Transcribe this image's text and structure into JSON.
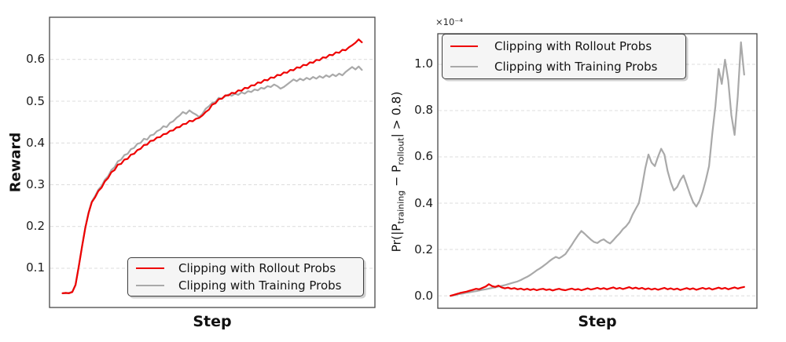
{
  "figure": {
    "background": "#ffffff",
    "grid_color": "#dcdcdc",
    "spine_color": "#474747"
  },
  "chart_data": [
    {
      "type": "line",
      "title": "",
      "xlabel": "Step",
      "ylabel": "Reward",
      "xlim": [
        0,
        1
      ],
      "ylim": [
        0.006,
        0.701
      ],
      "yticks": [
        0.1,
        0.2,
        0.3,
        0.4,
        0.5,
        0.6
      ],
      "ytick_labels": [
        "0.1",
        "0.2",
        "0.3",
        "0.4",
        "0.5",
        "0.6"
      ],
      "xticks_shown": false,
      "grid": true,
      "legend_position": "lower right",
      "x_start": 0.04,
      "x_step": 0.01,
      "series": [
        {
          "name": "Clipping with Rollout Probs",
          "color": "#ee0000",
          "values": [
            0.04,
            0.041,
            0.04,
            0.043,
            0.06,
            0.105,
            0.152,
            0.196,
            0.232,
            0.258,
            0.27,
            0.285,
            0.293,
            0.308,
            0.316,
            0.33,
            0.335,
            0.348,
            0.35,
            0.36,
            0.362,
            0.372,
            0.374,
            0.383,
            0.386,
            0.395,
            0.396,
            0.405,
            0.406,
            0.413,
            0.414,
            0.421,
            0.422,
            0.429,
            0.43,
            0.437,
            0.438,
            0.445,
            0.446,
            0.453,
            0.452,
            0.458,
            0.46,
            0.466,
            0.474,
            0.48,
            0.492,
            0.495,
            0.505,
            0.506,
            0.514,
            0.514,
            0.52,
            0.519,
            0.526,
            0.525,
            0.532,
            0.531,
            0.538,
            0.538,
            0.545,
            0.544,
            0.551,
            0.55,
            0.557,
            0.556,
            0.563,
            0.562,
            0.569,
            0.568,
            0.575,
            0.574,
            0.581,
            0.58,
            0.587,
            0.586,
            0.593,
            0.592,
            0.599,
            0.598,
            0.605,
            0.604,
            0.611,
            0.61,
            0.617,
            0.616,
            0.623,
            0.622,
            0.629,
            0.634,
            0.64,
            0.648,
            0.641
          ]
        },
        {
          "name": "Clipping with Training Probs",
          "color": "#a9a9a9",
          "values": [
            0.04,
            0.04,
            0.041,
            0.044,
            0.061,
            0.106,
            0.153,
            0.198,
            0.234,
            0.26,
            0.273,
            0.288,
            0.297,
            0.312,
            0.32,
            0.335,
            0.342,
            0.356,
            0.36,
            0.371,
            0.374,
            0.385,
            0.388,
            0.398,
            0.4,
            0.41,
            0.408,
            0.418,
            0.42,
            0.428,
            0.432,
            0.44,
            0.438,
            0.448,
            0.452,
            0.46,
            0.466,
            0.474,
            0.47,
            0.478,
            0.472,
            0.468,
            0.462,
            0.47,
            0.482,
            0.488,
            0.496,
            0.498,
            0.508,
            0.506,
            0.512,
            0.516,
            0.513,
            0.518,
            0.515,
            0.521,
            0.518,
            0.524,
            0.522,
            0.528,
            0.526,
            0.532,
            0.53,
            0.536,
            0.534,
            0.54,
            0.536,
            0.53,
            0.534,
            0.54,
            0.546,
            0.552,
            0.548,
            0.554,
            0.55,
            0.556,
            0.552,
            0.558,
            0.554,
            0.56,
            0.556,
            0.562,
            0.558,
            0.564,
            0.56,
            0.566,
            0.562,
            0.57,
            0.576,
            0.582,
            0.576,
            0.583,
            0.575
          ]
        }
      ]
    },
    {
      "type": "line",
      "title": "",
      "xlabel": "Step",
      "ylabel_parts": [
        {
          "text": "Pr(|P"
        },
        {
          "text": "training",
          "sub": true
        },
        {
          "text": " − P"
        },
        {
          "text": "rollout",
          "sub": true
        },
        {
          "text": "| > 0.8)"
        }
      ],
      "offset_text": "×10⁻⁴",
      "xlim": [
        0,
        1
      ],
      "ylim": [
        -0.054,
        1.132
      ],
      "yticks": [
        0.0,
        0.2,
        0.4,
        0.6,
        0.8,
        1.0
      ],
      "ytick_labels": [
        "0.0",
        "0.2",
        "0.4",
        "0.6",
        "0.8",
        "1.0"
      ],
      "xticks_shown": false,
      "grid": true,
      "legend_position": "upper left",
      "x_start": 0.04,
      "x_step": 0.01,
      "series": [
        {
          "name": "Clipping with Rollout Probs",
          "color": "#ee0000",
          "values": [
            0.0,
            0.004,
            0.008,
            0.012,
            0.015,
            0.018,
            0.022,
            0.026,
            0.03,
            0.028,
            0.034,
            0.04,
            0.05,
            0.042,
            0.038,
            0.044,
            0.036,
            0.032,
            0.035,
            0.03,
            0.033,
            0.028,
            0.031,
            0.026,
            0.03,
            0.025,
            0.029,
            0.024,
            0.028,
            0.03,
            0.025,
            0.028,
            0.023,
            0.027,
            0.03,
            0.026,
            0.024,
            0.028,
            0.031,
            0.026,
            0.029,
            0.024,
            0.028,
            0.032,
            0.027,
            0.03,
            0.034,
            0.029,
            0.033,
            0.028,
            0.032,
            0.036,
            0.03,
            0.034,
            0.029,
            0.033,
            0.037,
            0.031,
            0.035,
            0.03,
            0.034,
            0.028,
            0.032,
            0.027,
            0.031,
            0.026,
            0.03,
            0.034,
            0.028,
            0.032,
            0.027,
            0.031,
            0.025,
            0.029,
            0.033,
            0.028,
            0.032,
            0.026,
            0.03,
            0.034,
            0.029,
            0.033,
            0.027,
            0.031,
            0.035,
            0.03,
            0.034,
            0.028,
            0.032,
            0.036,
            0.031,
            0.035,
            0.038
          ]
        },
        {
          "name": "Clipping with Training Probs",
          "color": "#a9a9a9",
          "values": [
            0.0,
            0.002,
            0.005,
            0.008,
            0.01,
            0.013,
            0.015,
            0.018,
            0.02,
            0.023,
            0.026,
            0.028,
            0.031,
            0.034,
            0.036,
            0.04,
            0.043,
            0.046,
            0.05,
            0.054,
            0.058,
            0.062,
            0.068,
            0.075,
            0.082,
            0.09,
            0.1,
            0.11,
            0.118,
            0.128,
            0.138,
            0.15,
            0.16,
            0.168,
            0.162,
            0.17,
            0.18,
            0.2,
            0.22,
            0.242,
            0.262,
            0.28,
            0.268,
            0.255,
            0.242,
            0.232,
            0.228,
            0.238,
            0.244,
            0.233,
            0.226,
            0.24,
            0.256,
            0.27,
            0.288,
            0.3,
            0.318,
            0.35,
            0.375,
            0.4,
            0.47,
            0.55,
            0.61,
            0.575,
            0.56,
            0.6,
            0.635,
            0.61,
            0.54,
            0.49,
            0.455,
            0.47,
            0.5,
            0.52,
            0.48,
            0.44,
            0.405,
            0.385,
            0.41,
            0.45,
            0.5,
            0.56,
            0.7,
            0.82,
            0.98,
            0.915,
            1.02,
            0.93,
            0.78,
            0.695,
            0.86,
            1.095,
            0.955
          ]
        }
      ]
    }
  ]
}
